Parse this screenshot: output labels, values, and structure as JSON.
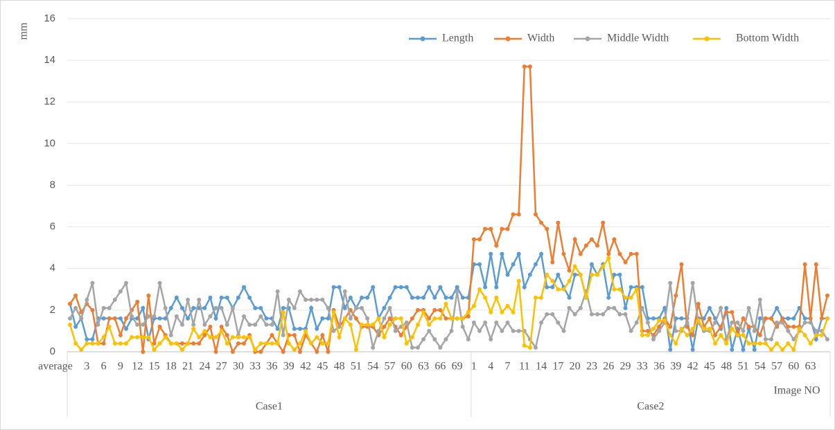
{
  "chart_data": {
    "type": "line",
    "y_label": "mm",
    "x_label": "Image NO",
    "ylim": [
      0,
      16
    ],
    "yticks": [
      0,
      2,
      4,
      6,
      8,
      10,
      12,
      14,
      16
    ],
    "legend": "top-right",
    "groups": [
      {
        "label": "Case1",
        "size": 72
      },
      {
        "label": "Case2",
        "size": 64
      }
    ],
    "categories": [
      "average",
      null,
      null,
      "3",
      null,
      null,
      "6",
      null,
      null,
      "9",
      null,
      null,
      "12",
      null,
      null,
      "15",
      null,
      null,
      "18",
      null,
      null,
      "21",
      null,
      null,
      "24",
      null,
      null,
      "27",
      null,
      null,
      "30",
      null,
      null,
      "33",
      null,
      null,
      "36",
      null,
      null,
      "39",
      null,
      null,
      "42",
      null,
      null,
      "45",
      null,
      null,
      "48",
      null,
      null,
      "51",
      null,
      null,
      "54",
      null,
      null,
      "57",
      null,
      null,
      "60",
      null,
      null,
      "63",
      null,
      null,
      "66",
      null,
      null,
      "69",
      null,
      null,
      "1",
      null,
      null,
      "4",
      null,
      null,
      "7",
      null,
      null,
      "11",
      null,
      null,
      "14",
      null,
      null,
      "17",
      null,
      null,
      "20",
      null,
      null,
      "23",
      null,
      null,
      "26",
      null,
      null,
      "29",
      null,
      null,
      "33",
      null,
      null,
      "36",
      null,
      null,
      "39",
      null,
      null,
      "42",
      null,
      null,
      "45",
      null,
      null,
      "48",
      null,
      null,
      "51",
      null,
      null,
      "54",
      null,
      null,
      "57",
      null,
      null,
      "60",
      null,
      null,
      "63",
      null,
      null,
      null
    ],
    "series": [
      {
        "name": "Length",
        "color": "#5b9bd5",
        "values": [
          2.3,
          1.2,
          1.6,
          0.6,
          0.6,
          1.6,
          1.6,
          1.6,
          1.6,
          1.6,
          1.1,
          1.6,
          1.6,
          2.1,
          0.6,
          1.6,
          1.6,
          1.6,
          2.1,
          2.6,
          2.1,
          1.6,
          2.1,
          2.1,
          2.1,
          2.6,
          1.6,
          2.6,
          2.6,
          2.1,
          2.6,
          3.1,
          2.6,
          2.1,
          2.1,
          1.6,
          1.6,
          1.1,
          2.1,
          2.1,
          1.1,
          1.1,
          1.1,
          2.1,
          1.1,
          1.6,
          1.6,
          3.1,
          3.1,
          2.1,
          2.6,
          2.1,
          2.6,
          2.6,
          3.1,
          1.6,
          2.1,
          2.6,
          3.1,
          3.1,
          3.1,
          2.6,
          2.6,
          2.6,
          3.1,
          2.6,
          3.1,
          2.6,
          2.6,
          3.1,
          2.6,
          2.6,
          4.2,
          4.2,
          3.1,
          4.7,
          3.1,
          4.7,
          3.7,
          4.2,
          4.7,
          3.1,
          3.7,
          4.2,
          4.7,
          3.1,
          3.1,
          3.7,
          3.1,
          2.6,
          3.7,
          3.7,
          2.6,
          4.2,
          3.7,
          4.2,
          2.6,
          3.7,
          3.7,
          2.1,
          3.1,
          3.1,
          3.1,
          1.6,
          1.6,
          1.6,
          2.1,
          0.1,
          1.6,
          1.6,
          1.6,
          0.1,
          1.6,
          1.6,
          2.1,
          1.6,
          1.1,
          2.1,
          0.1,
          1.1,
          0.1,
          1.1,
          0.1,
          1.6,
          1.6,
          1.6,
          2.1,
          1.6,
          1.6,
          1.6,
          2.1,
          1.6,
          1.6,
          0.6,
          1.6,
          1.6
        ]
      },
      {
        "name": "Width",
        "color": "#ed7d31",
        "values": [
          2.3,
          2.7,
          1.9,
          2.3,
          2.0,
          0.4,
          0.4,
          1.6,
          1.6,
          0.8,
          1.6,
          2.0,
          2.4,
          0.0,
          2.7,
          0.4,
          1.2,
          0.8,
          0.4,
          0.4,
          0.4,
          0.4,
          0.4,
          0.4,
          0.8,
          1.2,
          0.0,
          1.2,
          0.8,
          0.0,
          0.4,
          0.4,
          0.8,
          0.0,
          0.0,
          0.4,
          0.8,
          0.4,
          0.0,
          0.8,
          0.8,
          0.0,
          0.8,
          0.4,
          0.0,
          0.8,
          0.0,
          2.0,
          1.2,
          1.6,
          2.0,
          1.6,
          1.2,
          1.2,
          1.2,
          0.8,
          1.2,
          1.6,
          1.2,
          0.8,
          1.2,
          1.6,
          2.0,
          2.0,
          1.6,
          2.0,
          2.0,
          1.6,
          1.6,
          1.6,
          1.6,
          1.7,
          5.4,
          5.4,
          5.9,
          5.9,
          5.1,
          5.9,
          5.9,
          6.6,
          6.6,
          13.7,
          13.7,
          6.6,
          6.2,
          5.9,
          4.3,
          6.2,
          4.7,
          3.9,
          5.4,
          4.7,
          5.1,
          5.4,
          5.1,
          6.2,
          4.7,
          5.4,
          4.7,
          4.3,
          4.7,
          4.7,
          1.0,
          1.0,
          0.8,
          1.2,
          1.6,
          1.2,
          2.7,
          4.2,
          1.2,
          0.8,
          2.3,
          1.2,
          1.6,
          0.8,
          1.2,
          1.9,
          1.9,
          0.8,
          1.6,
          1.2,
          1.2,
          0.8,
          1.6,
          1.6,
          1.2,
          1.6,
          1.2,
          1.2,
          1.2,
          4.2,
          1.6,
          4.2,
          1.6,
          2.7
        ]
      },
      {
        "name": "Middle Width",
        "color": "#a5a5a5",
        "values": [
          1.6,
          2.1,
          1.6,
          2.5,
          3.3,
          1.3,
          2.1,
          2.1,
          2.5,
          2.9,
          3.3,
          1.7,
          1.3,
          1.3,
          1.7,
          1.7,
          3.3,
          2.1,
          0.8,
          1.7,
          1.3,
          2.5,
          1.3,
          2.5,
          1.3,
          1.7,
          2.1,
          2.1,
          1.3,
          2.1,
          0.8,
          1.7,
          1.3,
          1.3,
          1.7,
          1.3,
          1.3,
          2.9,
          0.8,
          2.5,
          2.1,
          2.9,
          2.5,
          2.5,
          2.5,
          2.5,
          2.1,
          1.0,
          1.2,
          2.9,
          1.6,
          2.1,
          2.1,
          1.6,
          0.2,
          1.0,
          1.6,
          2.1,
          1.0,
          1.2,
          1.4,
          0.2,
          0.2,
          0.6,
          1.0,
          0.6,
          0.2,
          0.6,
          1.0,
          2.9,
          1.2,
          0.6,
          1.4,
          1.0,
          1.4,
          0.6,
          1.4,
          1.0,
          1.4,
          1.0,
          1.0,
          1.0,
          0.6,
          0.2,
          1.4,
          1.8,
          1.8,
          1.4,
          1.0,
          2.1,
          1.8,
          2.1,
          2.9,
          1.8,
          1.8,
          1.8,
          2.1,
          2.1,
          1.8,
          1.8,
          1.0,
          1.4,
          2.1,
          1.4,
          0.6,
          1.0,
          1.4,
          3.3,
          1.0,
          1.0,
          1.4,
          3.3,
          1.4,
          1.0,
          1.0,
          1.4,
          2.1,
          0.6,
          1.4,
          1.4,
          1.0,
          2.1,
          1.0,
          2.5,
          0.6,
          0.6,
          1.4,
          1.4,
          1.0,
          0.6,
          1.0,
          1.4,
          1.4,
          1.0,
          1.0,
          0.6
        ]
      },
      {
        "name": "Bottom Width",
        "color": "#ffc000",
        "values": [
          1.3,
          0.4,
          0.1,
          0.4,
          0.4,
          0.4,
          0.7,
          1.2,
          0.4,
          0.4,
          0.4,
          0.7,
          0.7,
          0.7,
          0.7,
          0.1,
          0.4,
          0.7,
          0.4,
          0.4,
          0.1,
          0.4,
          1.1,
          0.7,
          1.0,
          0.7,
          0.7,
          1.0,
          0.4,
          0.7,
          0.7,
          0.7,
          0.7,
          0.1,
          0.4,
          0.4,
          0.4,
          0.4,
          1.9,
          0.4,
          0.1,
          0.4,
          1.0,
          0.4,
          0.7,
          0.4,
          0.4,
          1.9,
          0.7,
          1.6,
          1.3,
          0.1,
          1.3,
          1.3,
          1.3,
          1.6,
          0.7,
          1.3,
          1.6,
          1.6,
          0.4,
          0.7,
          1.3,
          1.9,
          1.3,
          1.6,
          1.6,
          2.3,
          1.6,
          1.6,
          1.6,
          1.9,
          2.2,
          3.0,
          2.6,
          1.9,
          2.6,
          1.9,
          2.2,
          1.9,
          3.4,
          0.3,
          0.2,
          2.6,
          2.6,
          3.7,
          3.4,
          3.0,
          3.0,
          3.4,
          4.1,
          3.7,
          2.6,
          3.7,
          3.7,
          4.1,
          4.5,
          3.0,
          3.0,
          2.6,
          2.6,
          3.0,
          0.8,
          0.8,
          1.1,
          1.5,
          1.5,
          0.8,
          0.4,
          1.1,
          0.8,
          1.1,
          1.5,
          1.1,
          1.1,
          0.4,
          0.8,
          0.4,
          1.1,
          0.8,
          0.8,
          0.4,
          0.4,
          0.4,
          0.4,
          0.1,
          0.4,
          0.1,
          0.4,
          0.1,
          1.1,
          0.8,
          0.4,
          0.8,
          0.8,
          1.6
        ]
      }
    ]
  }
}
